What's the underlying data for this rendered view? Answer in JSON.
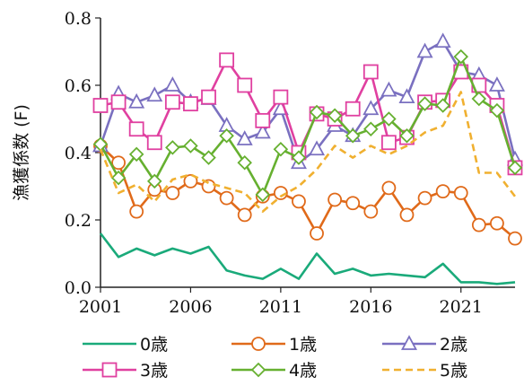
{
  "chart_data": {
    "type": "line",
    "ylabel": "漁獲係数 (F)",
    "xlabel": "",
    "xlim": [
      2001,
      2024
    ],
    "ylim": [
      0,
      0.8
    ],
    "x_ticks": [
      2001,
      2006,
      2011,
      2016,
      2021
    ],
    "y_ticks": [
      0.0,
      0.2,
      0.4,
      0.6,
      0.8
    ],
    "y_tick_labels": [
      "0.0",
      "0.2",
      "0.4",
      "0.6",
      "0.8"
    ],
    "grid": false,
    "legend_position": "bottom",
    "x": [
      2001,
      2002,
      2003,
      2004,
      2005,
      2006,
      2007,
      2008,
      2009,
      2010,
      2011,
      2012,
      2013,
      2014,
      2015,
      2016,
      2017,
      2018,
      2019,
      2020,
      2021,
      2022,
      2023,
      2024
    ],
    "series": [
      {
        "name": "0歳",
        "color": "#1aaa7a",
        "marker": "none",
        "dash": false,
        "values": [
          0.16,
          0.09,
          0.115,
          0.095,
          0.115,
          0.1,
          0.12,
          0.05,
          0.035,
          0.025,
          0.055,
          0.025,
          0.1,
          0.04,
          0.055,
          0.035,
          0.04,
          0.035,
          0.03,
          0.07,
          0.015,
          0.015,
          0.01,
          0.015
        ]
      },
      {
        "name": "1歳",
        "color": "#e06a1a",
        "marker": "circle",
        "dash": false,
        "values": [
          0.42,
          0.37,
          0.225,
          0.29,
          0.28,
          0.315,
          0.3,
          0.265,
          0.215,
          0.27,
          0.28,
          0.255,
          0.16,
          0.26,
          0.25,
          0.225,
          0.295,
          0.215,
          0.265,
          0.285,
          0.28,
          0.185,
          0.19,
          0.145
        ]
      },
      {
        "name": "2歳",
        "color": "#7a70c0",
        "marker": "triangle",
        "dash": false,
        "values": [
          0.42,
          0.575,
          0.55,
          0.57,
          0.6,
          0.55,
          0.56,
          0.48,
          0.44,
          0.46,
          0.53,
          0.37,
          0.41,
          0.48,
          0.45,
          0.53,
          0.585,
          0.565,
          0.7,
          0.73,
          0.64,
          0.63,
          0.6,
          0.38
        ]
      },
      {
        "name": "3歳",
        "color": "#e040a0",
        "marker": "square",
        "dash": false,
        "values": [
          0.54,
          0.55,
          0.47,
          0.43,
          0.55,
          0.545,
          0.565,
          0.675,
          0.6,
          0.495,
          0.565,
          0.4,
          0.515,
          0.5,
          0.53,
          0.64,
          0.43,
          0.445,
          0.55,
          0.555,
          0.64,
          0.6,
          0.54,
          0.355
        ]
      },
      {
        "name": "4歳",
        "color": "#66b030",
        "marker": "diamond",
        "dash": false,
        "values": [
          0.425,
          0.325,
          0.395,
          0.315,
          0.415,
          0.42,
          0.385,
          0.45,
          0.37,
          0.275,
          0.41,
          0.385,
          0.52,
          0.51,
          0.45,
          0.47,
          0.5,
          0.45,
          0.545,
          0.54,
          0.685,
          0.56,
          0.525,
          0.355
        ]
      },
      {
        "name": "5歳",
        "color": "#f0b030",
        "marker": "none",
        "dash": true,
        "values": [
          0.41,
          0.28,
          0.305,
          0.255,
          0.32,
          0.335,
          0.31,
          0.295,
          0.28,
          0.225,
          0.27,
          0.3,
          0.35,
          0.42,
          0.385,
          0.42,
          0.395,
          0.42,
          0.46,
          0.48,
          0.58,
          0.34,
          0.34,
          0.27
        ]
      }
    ]
  }
}
